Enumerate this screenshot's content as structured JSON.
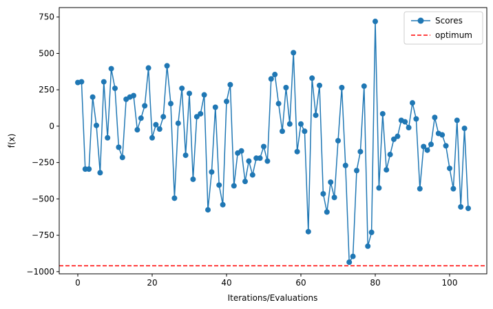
{
  "chart_data": {
    "type": "line",
    "title": "",
    "xlabel": "Iterations/Evaluations",
    "ylabel": "f(x)",
    "xlim": [
      -5,
      110
    ],
    "ylim": [
      -1015,
      815
    ],
    "xticks": [
      0,
      20,
      40,
      60,
      80,
      100
    ],
    "yticks": [
      -1000,
      -750,
      -500,
      -250,
      0,
      250,
      500,
      750
    ],
    "grid": false,
    "legend_position": "top-right",
    "series": [
      {
        "name": "Scores",
        "color": "#1f77b4",
        "marker": "circle",
        "x": [
          0,
          1,
          2,
          3,
          4,
          5,
          6,
          7,
          8,
          9,
          10,
          11,
          12,
          13,
          14,
          15,
          16,
          17,
          18,
          19,
          20,
          21,
          22,
          23,
          24,
          25,
          26,
          27,
          28,
          29,
          30,
          31,
          32,
          33,
          34,
          35,
          36,
          37,
          38,
          39,
          40,
          41,
          42,
          43,
          44,
          45,
          46,
          47,
          48,
          49,
          50,
          51,
          52,
          53,
          54,
          55,
          56,
          57,
          58,
          59,
          60,
          61,
          62,
          63,
          64,
          65,
          66,
          67,
          68,
          69,
          70,
          71,
          72,
          73,
          74,
          75,
          76,
          77,
          78,
          79,
          80,
          81,
          82,
          83,
          84,
          85,
          86,
          87,
          88,
          89,
          90,
          91,
          92,
          93,
          94,
          95,
          96,
          97,
          98,
          99,
          100,
          101,
          102,
          103,
          104,
          105
        ],
        "y": [
          300,
          305,
          -295,
          -295,
          200,
          5,
          -320,
          305,
          -80,
          395,
          260,
          -145,
          -215,
          185,
          200,
          210,
          -25,
          55,
          140,
          400,
          -80,
          10,
          -20,
          65,
          415,
          155,
          -495,
          20,
          260,
          -200,
          225,
          -365,
          65,
          85,
          215,
          -575,
          -315,
          130,
          -405,
          -540,
          170,
          285,
          -410,
          -185,
          -170,
          -380,
          -240,
          -335,
          -220,
          -220,
          -140,
          -240,
          325,
          355,
          155,
          -35,
          265,
          15,
          505,
          -175,
          15,
          -35,
          -725,
          330,
          75,
          280,
          -465,
          -590,
          -385,
          -490,
          -100,
          265,
          -270,
          -935,
          -895,
          -305,
          -175,
          275,
          -825,
          -730,
          720,
          -425,
          85,
          -300,
          -195,
          -90,
          -70,
          40,
          30,
          -10,
          160,
          50,
          -430,
          -140,
          -165,
          -125,
          60,
          -50,
          -60,
          -135,
          -290,
          -430,
          40,
          -555,
          -15,
          -565
        ]
      }
    ],
    "reference_lines": [
      {
        "name": "optimum",
        "y": -960,
        "color": "#ff0000",
        "style": "dashed"
      }
    ]
  }
}
